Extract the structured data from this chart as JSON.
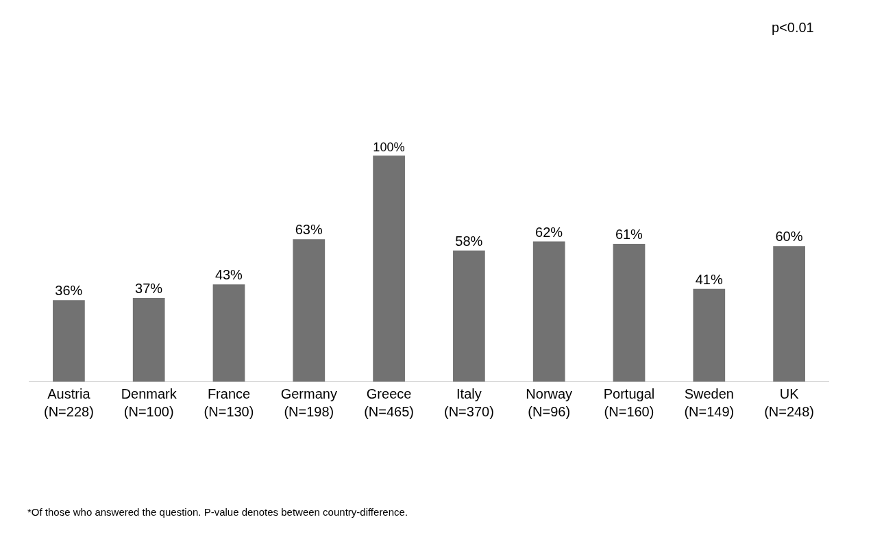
{
  "chart_data": {
    "type": "bar",
    "categories": [
      "Austria\n(N=228)",
      "Denmark\n(N=100)",
      "France\n(N=130)",
      "Germany\n(N=198)",
      "Greece\n(N=465)",
      "Italy\n(N=370)",
      "Norway\n(N=96)",
      "Portugal\n(N=160)",
      "Sweden\n(N=149)",
      "UK\n(N=248)"
    ],
    "values": [
      36,
      37,
      43,
      63,
      100,
      58,
      62,
      61,
      41,
      60
    ],
    "value_labels": [
      "36%",
      "37%",
      "43%",
      "63%",
      "100%",
      "58%",
      "62%",
      "61%",
      "41%",
      "60%"
    ],
    "color": "#727272",
    "grid": false,
    "annotations": [
      "p<0.01",
      "*Of those who answered the question. P-value denotes between country-difference."
    ]
  }
}
